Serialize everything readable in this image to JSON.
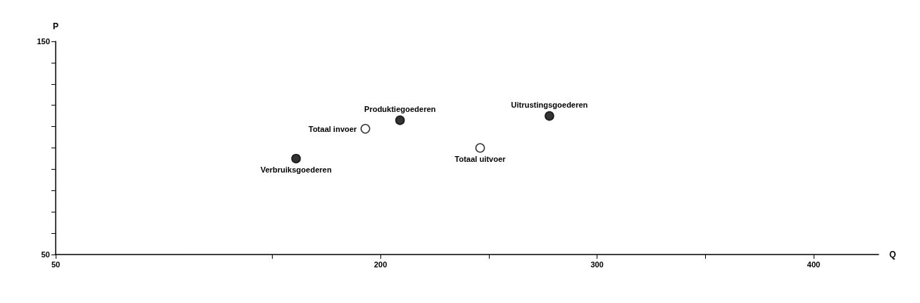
{
  "chart_data": {
    "type": "scatter",
    "xlabel": "Q",
    "ylabel": "P",
    "xlim": [
      50,
      430
    ],
    "xticks": [
      50,
      {
        "value": 150,
        "label": null
      },
      200,
      {
        "value": 250,
        "label": null
      },
      300,
      {
        "value": 350,
        "label": null
      },
      400
    ],
    "ylim": [
      50,
      150
    ],
    "yticks": [
      50,
      {
        "value": 60,
        "label": null
      },
      {
        "value": 70,
        "label": null
      },
      {
        "value": 80,
        "label": null
      },
      {
        "value": 90,
        "label": null
      },
      {
        "value": 100,
        "label": null
      },
      {
        "value": 110,
        "label": null
      },
      {
        "value": 120,
        "label": null
      },
      {
        "value": 130,
        "label": null
      },
      {
        "value": 140,
        "label": null
      },
      150
    ],
    "series": [
      {
        "color": "#000000",
        "x": [
          161,
          209,
          278
        ],
        "values": [
          95,
          113,
          115
        ]
      },
      {
        "color": "#ffffff",
        "x": [
          193,
          246
        ],
        "values": [
          109,
          100
        ]
      }
    ],
    "annotations": [
      {
        "text": "Verbruiksgoederen",
        "x": 161,
        "y": 95
      },
      {
        "text": "Produktiegoederen",
        "x": 209,
        "y": 113
      },
      {
        "text": "Uitrustingsgoederen",
        "x": 278,
        "y": 115
      },
      {
        "text": "Totaal invoer",
        "x": 193,
        "y": 109
      },
      {
        "text": "Totaal uitvoer",
        "x": 246,
        "y": 100
      }
    ],
    "grid": false,
    "marker": "circle"
  }
}
